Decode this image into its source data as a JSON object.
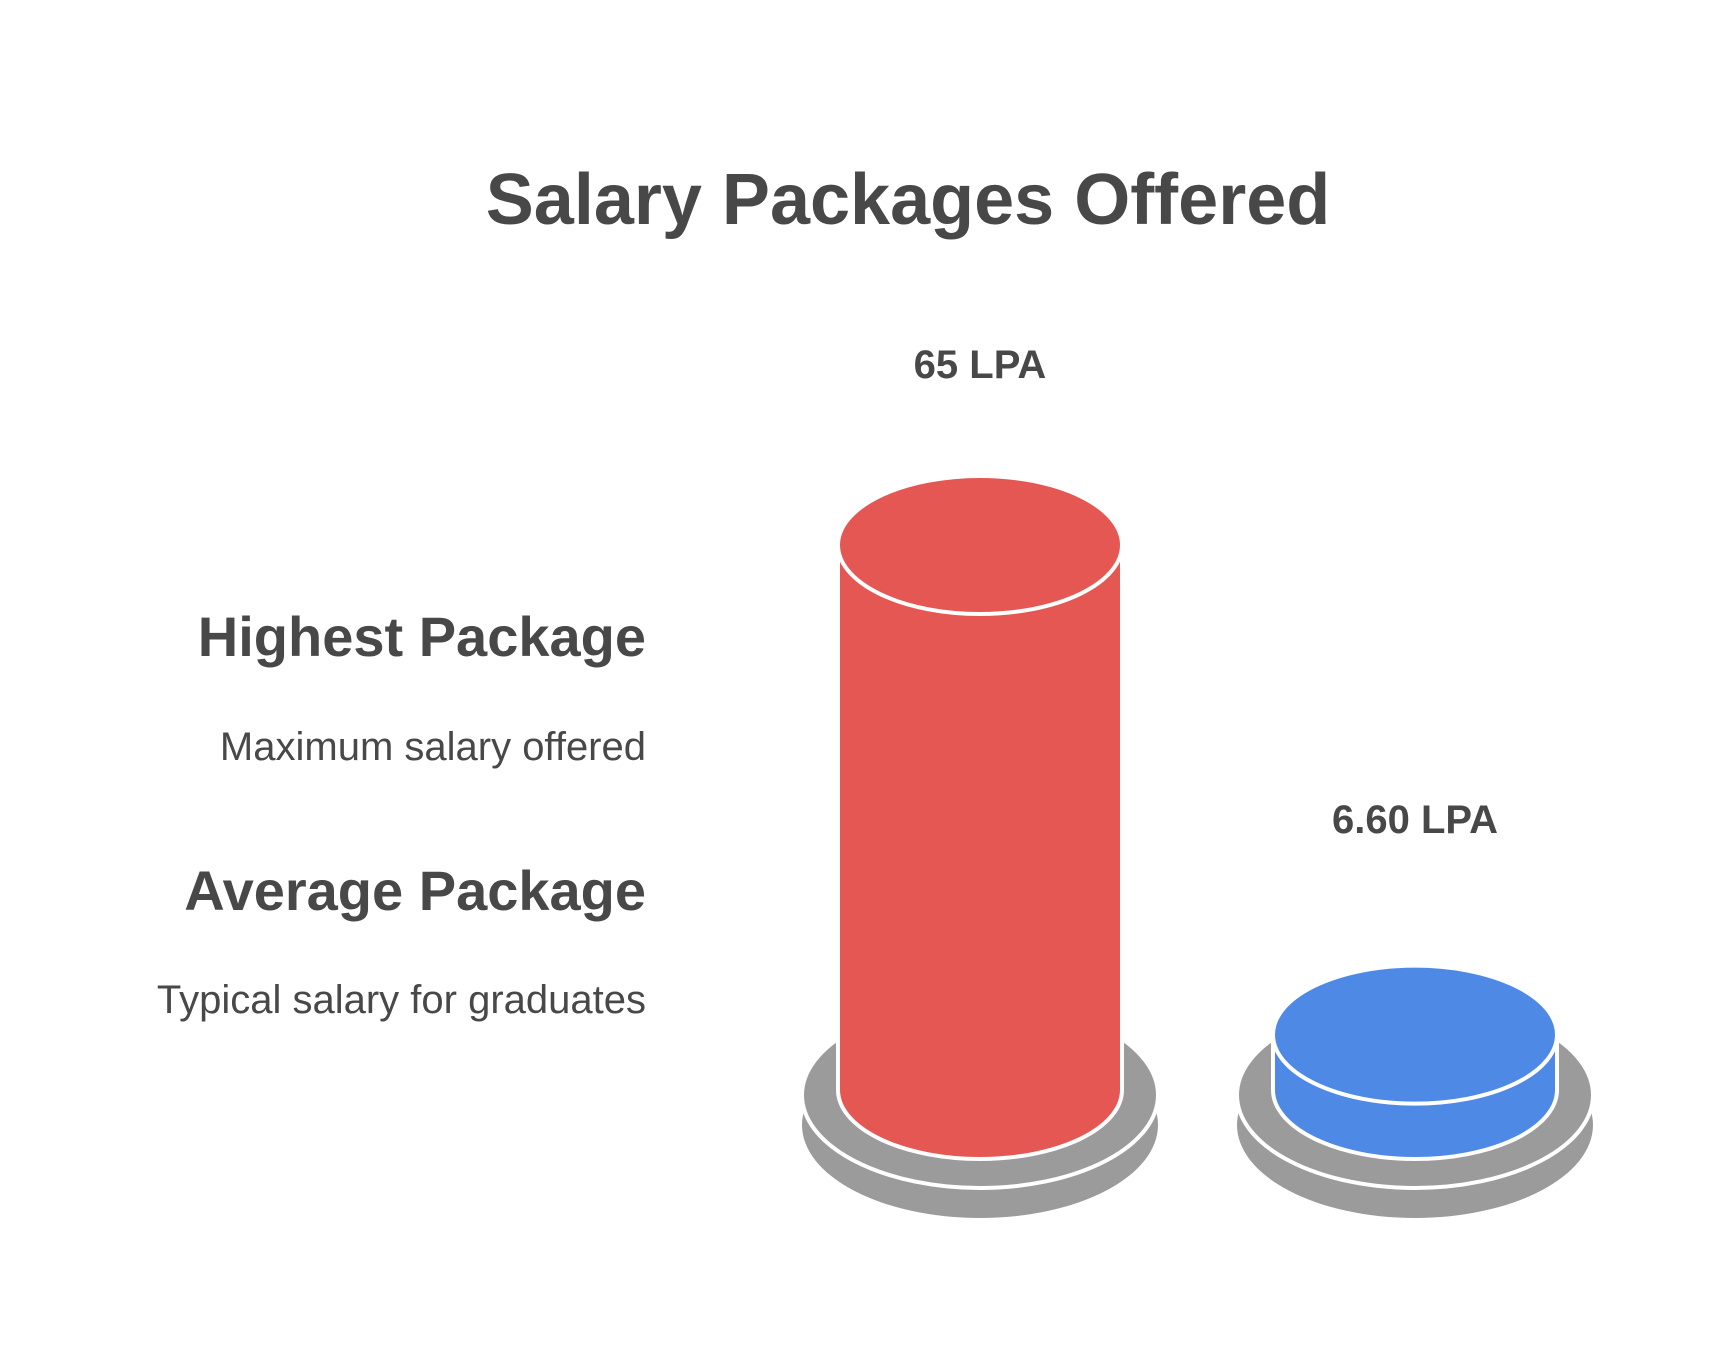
{
  "chart_data": {
    "type": "bar",
    "title": "Salary Packages Offered",
    "categories": [
      "Highest Package",
      "Average Package"
    ],
    "values": [
      65,
      6.6
    ],
    "value_labels": [
      "65 LPA",
      "6.60 LPA"
    ],
    "descriptions": [
      "Maximum salary offered",
      "Typical salary for graduates"
    ],
    "colors": [
      "#E55753",
      "#4E89E6"
    ],
    "base_color": "#9B9B9B",
    "unit": "LPA",
    "ylim": [
      0,
      65
    ],
    "grid": false,
    "legend": "left"
  }
}
